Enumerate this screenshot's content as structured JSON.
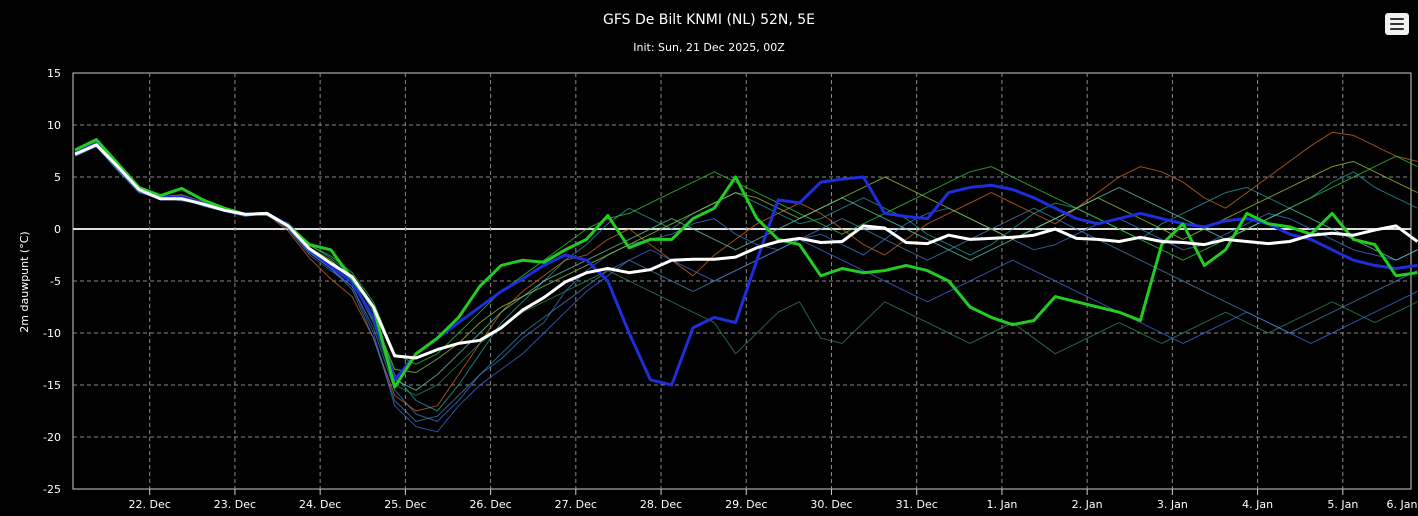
{
  "chart_data": {
    "type": "line",
    "title": "GFS De Bilt KNMI (NL) 52N, 5E",
    "subtitle": "Init: Sun, 21 Dec 2025, 00Z",
    "ylabel": "2m dauwpunt (°C)",
    "ylim": [
      -25,
      15
    ],
    "yticks": [
      -25,
      -20,
      -15,
      -10,
      -5,
      0,
      5,
      10,
      15
    ],
    "xlim": [
      0.1,
      15.8
    ],
    "xticks": [
      1,
      2,
      3,
      4,
      5,
      6,
      7,
      8,
      9,
      10,
      11,
      12,
      13,
      14,
      15,
      16
    ],
    "xtick_labels": [
      "22. Dec",
      "23. Dec",
      "24. Dec",
      "25. Dec",
      "26. Dec",
      "27. Dec",
      "28. Dec",
      "29. Dec",
      "30. Dec",
      "31. Dec",
      "1. Jan",
      "2. Jan",
      "3. Jan",
      "4. Jan",
      "5. Jan",
      "6. Jan"
    ],
    "x_step_days": 0.25,
    "x_start_day": 0.125,
    "grid": true,
    "legend": "none",
    "series": [
      {
        "color": "#ffffff",
        "values": [
          7.2,
          8.1,
          6.0,
          3.8,
          2.9,
          2.9,
          2.4,
          1.8,
          1.4,
          1.5,
          0.3,
          -1.9,
          -3.3,
          -4.6,
          -7.5,
          -12.2,
          -12.4,
          -11.6,
          -11.0,
          -10.7,
          -9.5,
          -7.8,
          -6.6,
          -5.1,
          -4.2,
          -3.8,
          -4.2,
          -3.9,
          -3.0,
          -2.9,
          -2.9,
          -2.7,
          -1.8,
          -1.2,
          -0.9,
          -1.3,
          -1.2,
          0.3,
          0.1,
          -1.3,
          -1.4,
          -0.6,
          -1.0,
          -0.9,
          -0.8,
          -0.6,
          0.0,
          -0.9,
          -1.0,
          -1.2,
          -0.8,
          -1.2,
          -1.3,
          -1.5,
          -1.0,
          -1.2,
          -1.4,
          -1.2,
          -0.6,
          -0.4,
          -0.6,
          -0.1,
          0.3,
          -1.2
        ]
      },
      {
        "color": "#1f2edc",
        "values": [
          7.5,
          8.2,
          6.0,
          3.8,
          3.0,
          3.1,
          2.5,
          1.9,
          1.4,
          1.5,
          0.4,
          -2.0,
          -3.6,
          -5.1,
          -8.5,
          -14.5,
          -12.0,
          -10.5,
          -9.0,
          -7.5,
          -6.0,
          -4.8,
          -3.5,
          -2.5,
          -3.0,
          -5.0,
          -10.0,
          -14.5,
          -15.0,
          -9.5,
          -8.5,
          -9.0,
          -3.0,
          2.8,
          2.5,
          4.5,
          4.8,
          5.0,
          1.5,
          1.2,
          1.0,
          3.5,
          4.0,
          4.2,
          3.8,
          3.0,
          2.0,
          1.0,
          0.5,
          1.0,
          1.5,
          1.0,
          0.5,
          0.2,
          0.8,
          1.0,
          0.5,
          -0.5,
          -1.0,
          -2.0,
          -3.0,
          -3.5,
          -3.8,
          -3.5
        ]
      },
      {
        "color": "#22cc22",
        "values": [
          7.6,
          8.6,
          6.3,
          4.0,
          3.2,
          3.9,
          2.8,
          2.0,
          1.4,
          1.5,
          0.3,
          -1.5,
          -2.0,
          -4.8,
          -7.5,
          -15.2,
          -12.0,
          -10.5,
          -8.5,
          -5.5,
          -3.5,
          -3.0,
          -3.2,
          -2.0,
          -1.0,
          1.3,
          -1.8,
          -1.0,
          -1.0,
          1.0,
          2.0,
          5.0,
          1.0,
          -1.0,
          -1.5,
          -4.5,
          -3.8,
          -4.2,
          -4.0,
          -3.5,
          -4.0,
          -5.0,
          -7.5,
          -8.5,
          -9.2,
          -8.8,
          -6.5,
          -7.0,
          -7.5,
          -8.0,
          -8.8,
          -1.5,
          0.5,
          -3.5,
          -2.0,
          1.5,
          0.5,
          0.2,
          -0.5,
          1.5,
          -1.0,
          -1.5,
          -4.5,
          -4.2
        ]
      },
      {
        "color": "#3a7bd5",
        "values": [
          7.4,
          8.3,
          5.9,
          3.7,
          2.8,
          3.0,
          2.2,
          1.7,
          1.2,
          1.6,
          0.1,
          -2.3,
          -3.8,
          -5.5,
          -9.5,
          -15.5,
          -17.8,
          -18.5,
          -16.5,
          -14.0,
          -12.5,
          -10.5,
          -9.0,
          -6.0,
          -4.0,
          -2.5,
          -1.5,
          -1.0,
          -0.5,
          0.5,
          1.0,
          -0.5,
          -1.5,
          -2.0,
          -1.0,
          -0.5,
          -1.5,
          -2.5,
          -1.0,
          0.5,
          1.5,
          2.0,
          1.0,
          0.0,
          -1.0,
          -2.0,
          -1.5,
          -0.5,
          0.5,
          1.0,
          0.0,
          -1.0,
          -2.0,
          -1.5,
          -0.5,
          0.5,
          1.5,
          1.0,
          0.0,
          -1.0,
          -2.0,
          -2.5,
          -3.0,
          -2.0
        ]
      },
      {
        "color": "#1fa3a3",
        "values": [
          7.0,
          8.0,
          5.7,
          3.6,
          3.0,
          2.7,
          2.5,
          1.8,
          1.5,
          1.3,
          0.6,
          -1.5,
          -2.8,
          -4.5,
          -8.0,
          -14.0,
          -16.5,
          -17.5,
          -15.0,
          -12.0,
          -9.0,
          -7.0,
          -5.0,
          -3.0,
          -1.5,
          0.5,
          2.0,
          1.0,
          0.0,
          1.5,
          2.5,
          3.5,
          2.5,
          1.5,
          0.5,
          1.0,
          2.0,
          3.0,
          2.0,
          1.0,
          -0.5,
          -1.5,
          -2.5,
          -1.5,
          0.0,
          1.5,
          2.5,
          2.0,
          1.0,
          0.0,
          -1.0,
          0.5,
          1.5,
          2.5,
          3.5,
          4.0,
          3.0,
          2.0,
          3.0,
          4.5,
          5.5,
          4.0,
          3.0,
          2.0
        ]
      },
      {
        "color": "#d2691e",
        "values": [
          7.3,
          8.4,
          6.2,
          3.9,
          2.9,
          3.2,
          2.4,
          1.9,
          1.3,
          1.4,
          -0.2,
          -2.8,
          -4.8,
          -6.5,
          -10.5,
          -16.0,
          -17.5,
          -17.0,
          -14.0,
          -11.0,
          -8.0,
          -6.0,
          -4.5,
          -3.0,
          -2.5,
          -1.0,
          0.0,
          -1.5,
          -3.0,
          -4.5,
          -2.5,
          -1.0,
          0.5,
          1.5,
          2.5,
          1.5,
          0.0,
          -1.5,
          -2.5,
          -1.0,
          0.5,
          1.5,
          2.5,
          3.5,
          2.5,
          1.5,
          0.5,
          2.0,
          3.5,
          5.0,
          6.0,
          5.5,
          4.5,
          3.0,
          2.0,
          3.5,
          5.0,
          6.5,
          8.0,
          9.3,
          9.0,
          8.0,
          7.0,
          6.5
        ]
      },
      {
        "color": "#9acd32",
        "values": [
          7.1,
          8.2,
          6.1,
          3.7,
          3.1,
          3.3,
          2.6,
          2.0,
          1.5,
          1.4,
          0.4,
          -1.8,
          -3.0,
          -4.8,
          -8.5,
          -13.5,
          -13.8,
          -12.5,
          -11.0,
          -9.0,
          -7.5,
          -6.5,
          -5.5,
          -4.5,
          -3.5,
          -2.5,
          -1.5,
          -0.5,
          0.5,
          1.5,
          2.5,
          3.5,
          3.0,
          2.0,
          1.0,
          2.0,
          3.0,
          4.0,
          5.0,
          4.0,
          3.0,
          2.0,
          1.0,
          0.0,
          -1.0,
          0.0,
          1.0,
          2.0,
          3.0,
          2.0,
          1.0,
          0.0,
          -1.0,
          0.0,
          1.0,
          2.0,
          3.0,
          4.0,
          5.0,
          6.0,
          6.5,
          5.5,
          4.5,
          3.5
        ]
      },
      {
        "color": "#2e8b57",
        "values": [
          7.2,
          8.5,
          6.0,
          3.8,
          3.0,
          3.0,
          2.3,
          1.8,
          1.4,
          1.5,
          0.2,
          -2.0,
          -3.5,
          -5.0,
          -9.0,
          -15.0,
          -16.0,
          -15.0,
          -13.0,
          -11.0,
          -9.5,
          -8.0,
          -7.0,
          -6.0,
          -5.0,
          -4.0,
          -5.0,
          -6.0,
          -7.0,
          -8.0,
          -9.0,
          -12.0,
          -10.0,
          -8.0,
          -7.0,
          -10.5,
          -11.0,
          -9.0,
          -7.0,
          -8.0,
          -9.0,
          -10.0,
          -11.0,
          -10.0,
          -9.0,
          -10.5,
          -12.0,
          -11.0,
          -10.0,
          -9.0,
          -10.0,
          -11.0,
          -10.0,
          -9.0,
          -8.0,
          -9.0,
          -10.0,
          -9.0,
          -8.0,
          -7.0,
          -8.0,
          -9.0,
          -8.0,
          -7.0
        ]
      },
      {
        "color": "#4169e1",
        "values": [
          7.4,
          8.0,
          5.8,
          3.6,
          2.8,
          2.8,
          2.3,
          1.7,
          1.3,
          1.4,
          0.0,
          -2.5,
          -4.0,
          -5.5,
          -10.0,
          -17.0,
          -19.0,
          -19.5,
          -17.0,
          -15.0,
          -13.5,
          -12.0,
          -10.0,
          -8.0,
          -6.0,
          -4.5,
          -3.0,
          -2.0,
          -3.0,
          -4.0,
          -5.0,
          -4.0,
          -3.0,
          -2.0,
          -1.0,
          -2.0,
          -3.0,
          -4.0,
          -5.0,
          -6.0,
          -7.0,
          -6.0,
          -5.0,
          -4.0,
          -3.0,
          -4.0,
          -5.0,
          -6.0,
          -7.0,
          -8.0,
          -9.0,
          -10.0,
          -11.0,
          -10.0,
          -9.0,
          -8.0,
          -9.0,
          -10.0,
          -11.0,
          -10.0,
          -9.0,
          -8.0,
          -7.0,
          -6.0
        ]
      },
      {
        "color": "#32cd32",
        "values": [
          7.3,
          8.3,
          6.1,
          3.9,
          3.1,
          3.1,
          2.5,
          1.9,
          1.5,
          1.5,
          0.5,
          -1.6,
          -2.6,
          -4.2,
          -7.0,
          -12.0,
          -13.0,
          -12.0,
          -10.0,
          -8.0,
          -6.0,
          -4.5,
          -3.0,
          -1.5,
          0.0,
          1.0,
          1.5,
          2.5,
          3.5,
          4.5,
          5.5,
          4.5,
          3.5,
          2.5,
          1.5,
          0.5,
          -0.5,
          0.5,
          1.5,
          2.5,
          3.5,
          4.5,
          5.5,
          6.0,
          5.0,
          4.0,
          3.0,
          2.0,
          1.0,
          0.0,
          -1.0,
          -2.0,
          -3.0,
          -2.0,
          -1.0,
          0.0,
          1.0,
          2.0,
          3.0,
          4.0,
          5.0,
          6.0,
          7.0,
          6.0
        ]
      },
      {
        "color": "#4682b4",
        "values": [
          7.0,
          7.9,
          5.6,
          3.5,
          2.9,
          2.9,
          2.3,
          1.8,
          1.4,
          1.3,
          0.2,
          -2.2,
          -3.8,
          -5.8,
          -10.5,
          -16.5,
          -18.5,
          -18.0,
          -16.0,
          -14.0,
          -12.0,
          -10.0,
          -8.5,
          -7.0,
          -5.5,
          -4.0,
          -3.0,
          -4.0,
          -5.0,
          -6.0,
          -5.0,
          -4.0,
          -3.0,
          -2.0,
          -1.0,
          0.0,
          1.0,
          0.0,
          -1.0,
          -2.0,
          -3.0,
          -2.0,
          -1.0,
          0.0,
          1.0,
          2.0,
          1.0,
          0.0,
          -1.0,
          -2.0,
          -3.0,
          -4.0,
          -5.0,
          -6.0,
          -7.0,
          -8.0,
          -9.0,
          -10.0,
          -9.0,
          -8.0,
          -7.0,
          -6.0,
          -5.0,
          -4.0
        ]
      },
      {
        "color": "#66cdaa",
        "values": [
          7.2,
          8.1,
          5.9,
          3.7,
          3.0,
          3.0,
          2.4,
          1.8,
          1.4,
          1.4,
          0.3,
          -1.9,
          -3.2,
          -4.9,
          -8.8,
          -14.5,
          -15.5,
          -14.0,
          -12.0,
          -10.0,
          -8.0,
          -6.5,
          -5.0,
          -4.0,
          -3.0,
          -2.0,
          -1.0,
          0.0,
          1.0,
          0.0,
          -1.0,
          -2.0,
          -1.0,
          0.0,
          1.0,
          2.0,
          3.0,
          2.0,
          1.0,
          0.0,
          -1.0,
          -2.0,
          -3.0,
          -2.0,
          -1.0,
          0.0,
          1.0,
          2.0,
          3.0,
          4.0,
          3.0,
          2.0,
          1.0,
          0.0,
          -1.0,
          0.0,
          1.0,
          2.0,
          1.0,
          0.0,
          -1.0,
          -2.0,
          -3.0,
          -2.0
        ]
      }
    ]
  },
  "toolbar": {
    "menu_icon": "hamburger-menu-icon"
  }
}
